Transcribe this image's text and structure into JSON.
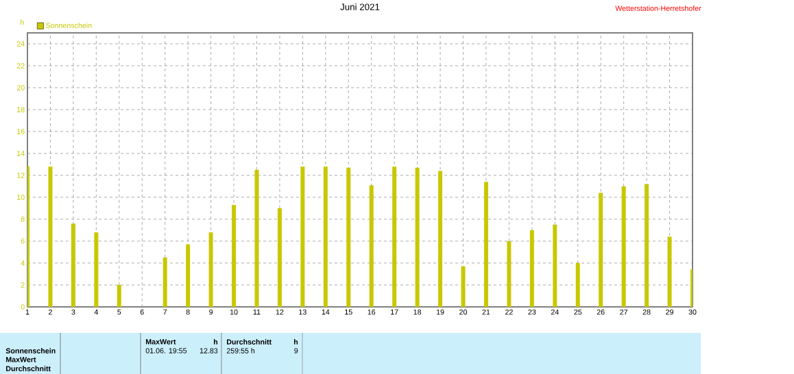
{
  "chart_data": {
    "type": "bar",
    "title": "Juni 2021",
    "ylabel": "h",
    "x": [
      1,
      2,
      3,
      4,
      5,
      6,
      7,
      8,
      9,
      10,
      11,
      12,
      13,
      14,
      15,
      16,
      17,
      18,
      19,
      20,
      21,
      22,
      23,
      24,
      25,
      26,
      27,
      28,
      29,
      30
    ],
    "series": [
      {
        "name": "Sonnenschein",
        "color": "#c8c800",
        "values": [
          12.83,
          12.8,
          7.6,
          6.8,
          2.0,
          0,
          4.5,
          5.7,
          6.8,
          9.3,
          12.5,
          9.0,
          12.8,
          12.8,
          12.7,
          11.1,
          12.8,
          12.7,
          12.4,
          3.7,
          11.4,
          6.0,
          7.0,
          7.5,
          4.0,
          10.4,
          11.0,
          11.2,
          6.4,
          3.4
        ]
      }
    ],
    "xlim": [
      1,
      30
    ],
    "ylim": [
      0,
      25
    ],
    "xticks": [
      1,
      2,
      3,
      4,
      5,
      6,
      7,
      8,
      9,
      10,
      11,
      12,
      13,
      14,
      15,
      16,
      17,
      18,
      19,
      20,
      21,
      22,
      23,
      24,
      25,
      26,
      27,
      28,
      29,
      30
    ],
    "yticks": [
      0,
      2,
      4,
      6,
      8,
      10,
      12,
      14,
      16,
      18,
      20,
      22,
      24
    ],
    "grid": true,
    "legend": "top left",
    "annotations": [
      "Wetterstation-Herretshofer",
      "Sonnenschein",
      "MaxWert",
      "Durchschnitt",
      "MaxWert",
      "h",
      "01.06.  19:55",
      "12.83",
      "Durchschnitt",
      "h",
      "259:55 h",
      "9"
    ]
  }
}
